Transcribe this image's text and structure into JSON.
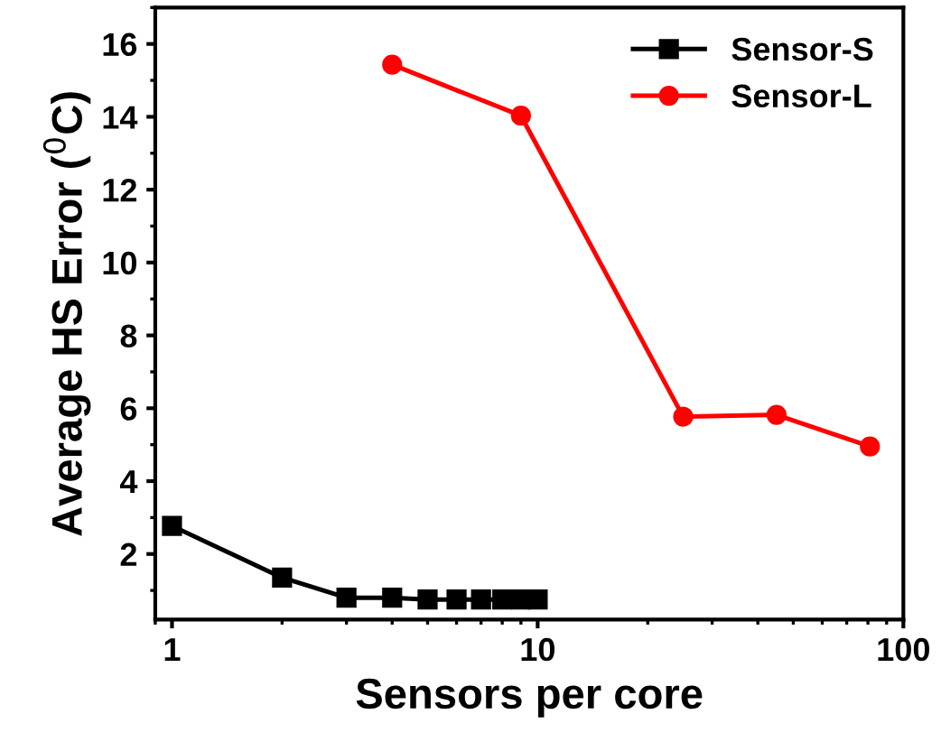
{
  "chart_data": {
    "type": "line",
    "xlabel": "Sensors per core",
    "ylabel": "Average HS Error ($^{0}$C)",
    "log": "x",
    "xlim": [
      0.9,
      100
    ],
    "xticks": [
      1,
      10,
      100
    ],
    "ylim": [
      0.2,
      17
    ],
    "yticks": [
      2,
      4,
      6,
      8,
      10,
      12,
      14,
      16
    ],
    "grid": false,
    "legend": "top right",
    "series": [
      {
        "name": "Sensor-S",
        "color": "#000000",
        "marker": "square",
        "x": [
          1,
          2,
          3,
          4,
          5,
          6,
          7,
          8,
          9,
          10
        ],
        "values": [
          2.77,
          1.35,
          0.8,
          0.8,
          0.75,
          0.75,
          0.75,
          0.75,
          0.75,
          0.75
        ]
      },
      {
        "name": "Sensor-L",
        "color": "#ff0000",
        "marker": "circle",
        "x": [
          4,
          9,
          25,
          45,
          81
        ],
        "values": [
          15.43,
          14.03,
          5.77,
          5.82,
          4.95
        ]
      }
    ]
  }
}
